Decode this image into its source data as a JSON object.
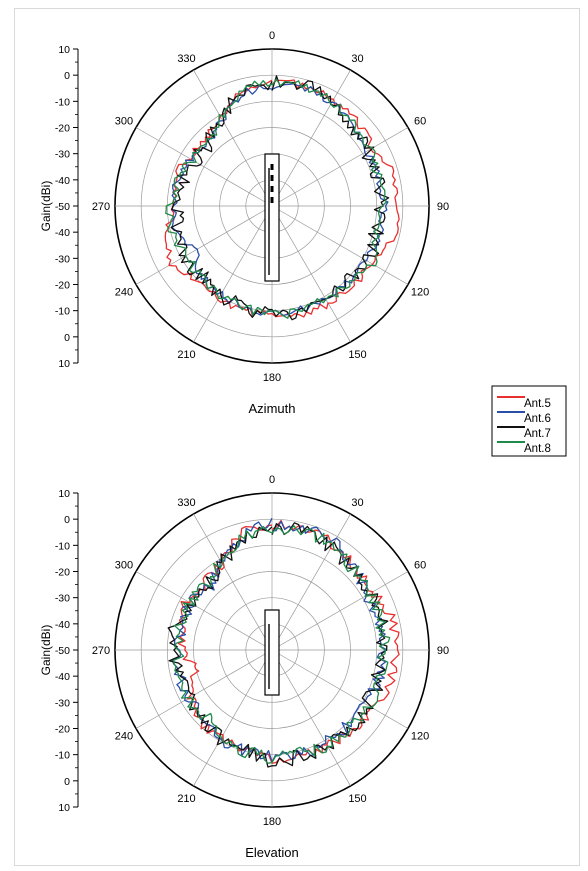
{
  "chart_data": [
    {
      "type": "polar-line",
      "title": "Azimuth",
      "ylabel": "Gain(dBi)",
      "radial_range": [
        -50,
        10
      ],
      "radial_ticks": [
        10,
        0,
        -10,
        -20,
        -30,
        -40,
        -50,
        -40,
        -30,
        -20,
        -10,
        0,
        10
      ],
      "angle_ticks": [
        "0",
        "30",
        "60",
        "90",
        "120",
        "150",
        "180",
        "210",
        "240",
        "270",
        "300",
        "330"
      ],
      "grid": true,
      "series": [
        {
          "name": "Ant.5",
          "color": "#e8312f",
          "angles": [
            0,
            20,
            40,
            60,
            75,
            90,
            100,
            110,
            120,
            135,
            150,
            165,
            180,
            195,
            210,
            225,
            240,
            255,
            270,
            285,
            300,
            315,
            330,
            345
          ],
          "values": [
            -2,
            -3,
            -4,
            -6,
            -1,
            -3,
            -1,
            -4,
            -6,
            -7,
            -7,
            -7,
            -8,
            -9,
            -9,
            -10,
            -6,
            -9,
            -13,
            -11,
            -13,
            -14,
            -11,
            -4
          ],
          "jitter": 1.5
        },
        {
          "name": "Ant.6",
          "color": "#2a4fa8",
          "angles": [
            0,
            20,
            40,
            60,
            75,
            90,
            105,
            120,
            135,
            150,
            165,
            180,
            195,
            210,
            225,
            240,
            255,
            270,
            285,
            300,
            315,
            330,
            345
          ],
          "values": [
            -4,
            -3,
            -6,
            -8,
            -8,
            -7,
            -8,
            -8,
            -9,
            -9,
            -9,
            -9,
            -10,
            -11,
            -12,
            -16,
            -11,
            -13,
            -12,
            -14,
            -16,
            -12,
            -6
          ],
          "jitter": 1.5
        },
        {
          "name": "Ant.7",
          "color": "#111111",
          "angles": [
            0,
            20,
            40,
            60,
            75,
            90,
            105,
            120,
            135,
            150,
            165,
            180,
            195,
            210,
            225,
            240,
            255,
            270,
            285,
            300,
            315,
            330,
            345
          ],
          "values": [
            -3,
            -3,
            -7,
            -8,
            -8,
            -8,
            -9,
            -8,
            -9,
            -9,
            -8,
            -9,
            -10,
            -11,
            -12,
            -11,
            -12,
            -14,
            -14,
            -16,
            -16,
            -11,
            -6
          ],
          "jitter": 3
        },
        {
          "name": "Ant.8",
          "color": "#1f8a4a",
          "angles": [
            0,
            20,
            40,
            60,
            75,
            90,
            105,
            120,
            135,
            150,
            165,
            180,
            195,
            210,
            225,
            240,
            255,
            270,
            285,
            300,
            315,
            330,
            345
          ],
          "values": [
            -2,
            -3,
            -6,
            -7,
            -8,
            -8,
            -8,
            -6,
            -8,
            -9,
            -8,
            -9,
            -10,
            -11,
            -12,
            -12,
            -11,
            -11,
            -13,
            -15,
            -16,
            -11,
            -5
          ],
          "jitter": 2
        }
      ]
    },
    {
      "type": "polar-line",
      "title": "Elevation",
      "ylabel": "Gain(dBi)",
      "radial_range": [
        -50,
        10
      ],
      "radial_ticks": [
        10,
        0,
        -10,
        -20,
        -30,
        -40,
        -50,
        -40,
        -30,
        -20,
        -10,
        0,
        10
      ],
      "angle_ticks": [
        "0",
        "30",
        "60",
        "90",
        "120",
        "150",
        "180",
        "210",
        "240",
        "270",
        "300",
        "330"
      ],
      "grid": true,
      "series": [
        {
          "name": "Ant.5",
          "color": "#e8312f",
          "angles": [
            0,
            20,
            40,
            60,
            75,
            90,
            100,
            110,
            120,
            135,
            150,
            165,
            180,
            195,
            210,
            225,
            240,
            255,
            270,
            285,
            300,
            315,
            330,
            345
          ],
          "values": [
            -2,
            -2,
            -5,
            -6,
            -2,
            -3,
            -3,
            -3,
            -6,
            -7,
            -8,
            -8,
            -8,
            -10,
            -11,
            -11,
            -14,
            -20,
            -16,
            -14,
            -12,
            -14,
            -12,
            -4
          ],
          "jitter": 2
        },
        {
          "name": "Ant.6",
          "color": "#2a4fa8",
          "angles": [
            0,
            20,
            40,
            60,
            75,
            90,
            105,
            120,
            135,
            150,
            165,
            180,
            195,
            210,
            225,
            240,
            255,
            270,
            285,
            300,
            315,
            330,
            345
          ],
          "values": [
            -2,
            -1,
            -5,
            -8,
            -7,
            -7,
            -8,
            -8,
            -9,
            -9,
            -9,
            -9,
            -10,
            -11,
            -13,
            -14,
            -13,
            -14,
            -14,
            -14,
            -16,
            -12,
            -5
          ],
          "jitter": 2.5
        },
        {
          "name": "Ant.7",
          "color": "#111111",
          "angles": [
            0,
            20,
            40,
            60,
            75,
            90,
            105,
            120,
            135,
            150,
            165,
            180,
            195,
            210,
            225,
            240,
            255,
            270,
            285,
            300,
            315,
            330,
            345
          ],
          "values": [
            -3,
            -3,
            -6,
            -7,
            -7,
            -7,
            -8,
            -8,
            -8,
            -8,
            -8,
            -8,
            -10,
            -11,
            -13,
            -14,
            -13,
            -12,
            -12,
            -14,
            -15,
            -12,
            -6
          ],
          "jitter": 3
        },
        {
          "name": "Ant.8",
          "color": "#1f8a4a",
          "angles": [
            0,
            20,
            40,
            60,
            75,
            90,
            105,
            120,
            135,
            150,
            165,
            180,
            195,
            210,
            225,
            240,
            255,
            270,
            285,
            300,
            315,
            330,
            345
          ],
          "values": [
            -3,
            -3,
            -6,
            -7,
            -7,
            -7,
            -7,
            -7,
            -8,
            -8,
            -9,
            -9,
            -10,
            -11,
            -14,
            -13,
            -13,
            -14,
            -13,
            -14,
            -15,
            -11,
            -5
          ],
          "jitter": 2.5
        }
      ]
    }
  ],
  "legend": {
    "items": [
      {
        "label": "Ant.5",
        "color": "#e8312f"
      },
      {
        "label": "Ant.6",
        "color": "#2a4fa8"
      },
      {
        "label": "Ant.7",
        "color": "#111111"
      },
      {
        "label": "Ant.8",
        "color": "#1f8a4a"
      }
    ]
  }
}
